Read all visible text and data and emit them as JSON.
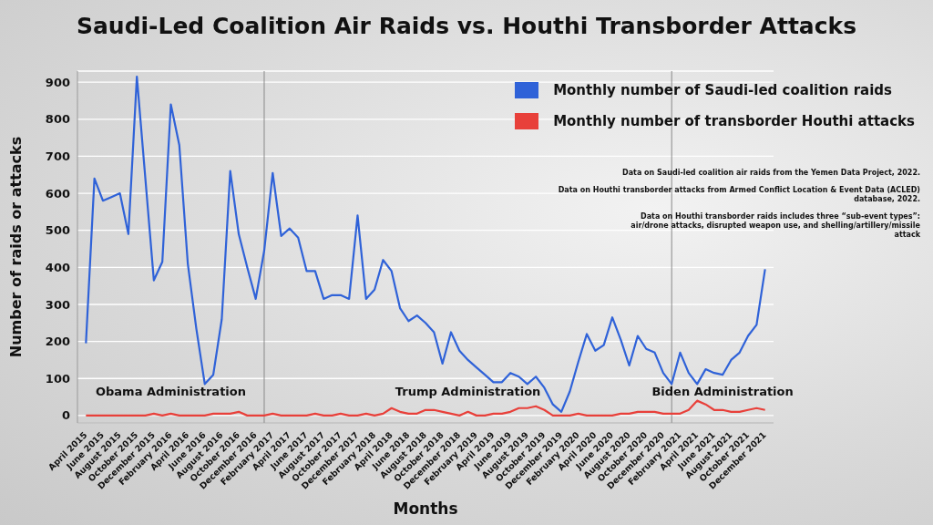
{
  "chart_data": {
    "type": "line",
    "title": "Saudi-Led Coalition Air Raids vs. Houthi Transborder Attacks",
    "xlabel": "Months",
    "ylabel": "Number of raids or attacks",
    "x": [
      "2015-04",
      "2015-05",
      "2015-06",
      "2015-07",
      "2015-08",
      "2015-09",
      "2015-10",
      "2015-11",
      "2015-12",
      "2016-01",
      "2016-02",
      "2016-03",
      "2016-04",
      "2016-05",
      "2016-06",
      "2016-07",
      "2016-08",
      "2016-09",
      "2016-10",
      "2016-11",
      "2016-12",
      "2017-01",
      "2017-02",
      "2017-03",
      "2017-04",
      "2017-05",
      "2017-06",
      "2017-07",
      "2017-08",
      "2017-09",
      "2017-10",
      "2017-11",
      "2017-12",
      "2018-01",
      "2018-02",
      "2018-03",
      "2018-04",
      "2018-05",
      "2018-06",
      "2018-07",
      "2018-08",
      "2018-09",
      "2018-10",
      "2018-11",
      "2018-12",
      "2019-01",
      "2019-02",
      "2019-03",
      "2019-04",
      "2019-05",
      "2019-06",
      "2019-07",
      "2019-08",
      "2019-09",
      "2019-10",
      "2019-11",
      "2019-12",
      "2020-01",
      "2020-02",
      "2020-03",
      "2020-04",
      "2020-05",
      "2020-06",
      "2020-07",
      "2020-08",
      "2020-09",
      "2020-10",
      "2020-11",
      "2020-12",
      "2021-01",
      "2021-02",
      "2021-03",
      "2021-04",
      "2021-05",
      "2021-06",
      "2021-07",
      "2021-08",
      "2021-09",
      "2021-10",
      "2021-11",
      "2021-12"
    ],
    "series": [
      {
        "name": "Monthly number of Saudi-led coalition raids",
        "color": "#2f62d8",
        "values": [
          195,
          640,
          580,
          590,
          600,
          490,
          915,
          640,
          365,
          415,
          840,
          730,
          410,
          235,
          85,
          110,
          260,
          660,
          490,
          400,
          315,
          445,
          655,
          485,
          505,
          480,
          390,
          390,
          315,
          325,
          325,
          315,
          540,
          315,
          340,
          420,
          390,
          290,
          255,
          270,
          250,
          225,
          140,
          225,
          175,
          150,
          130,
          110,
          90,
          90,
          115,
          105,
          85,
          105,
          75,
          30,
          10,
          65,
          145,
          220,
          175,
          190,
          265,
          205,
          135,
          215,
          180,
          170,
          115,
          85,
          170,
          115,
          85,
          125,
          115,
          110,
          150,
          170,
          215,
          245,
          395
        ]
      },
      {
        "name": "Monthly number of transborder Houthi attacks",
        "color": "#e8403a",
        "values": [
          0,
          0,
          0,
          0,
          0,
          0,
          0,
          0,
          5,
          0,
          5,
          0,
          0,
          0,
          0,
          5,
          5,
          5,
          10,
          0,
          0,
          0,
          5,
          0,
          0,
          0,
          0,
          5,
          0,
          0,
          5,
          0,
          0,
          5,
          0,
          5,
          20,
          10,
          5,
          5,
          15,
          15,
          10,
          5,
          0,
          10,
          0,
          0,
          5,
          5,
          10,
          20,
          20,
          25,
          15,
          0,
          0,
          0,
          5,
          0,
          0,
          0,
          0,
          5,
          5,
          10,
          10,
          10,
          5,
          5,
          5,
          15,
          40,
          30,
          15,
          15,
          10,
          10,
          15,
          20,
          15
        ]
      }
    ],
    "xlim": [
      "2015-03",
      "2022-01"
    ],
    "xticks": [
      {
        "value": "2015-04",
        "label": "April 2015"
      },
      {
        "value": "2015-06",
        "label": "June 2015"
      },
      {
        "value": "2015-08",
        "label": "August 2015"
      },
      {
        "value": "2015-10",
        "label": "October 2015"
      },
      {
        "value": "2015-12",
        "label": "December 2015"
      },
      {
        "value": "2016-02",
        "label": "February 2016"
      },
      {
        "value": "2016-04",
        "label": "April 2016"
      },
      {
        "value": "2016-06",
        "label": "June 2016"
      },
      {
        "value": "2016-08",
        "label": "August 2016"
      },
      {
        "value": "2016-10",
        "label": "October 2016"
      },
      {
        "value": "2016-12",
        "label": "December 2016"
      },
      {
        "value": "2017-02",
        "label": "February 2017"
      },
      {
        "value": "2017-04",
        "label": "April 2017"
      },
      {
        "value": "2017-06",
        "label": "June 2017"
      },
      {
        "value": "2017-08",
        "label": "August 2017"
      },
      {
        "value": "2017-10",
        "label": "October 2017"
      },
      {
        "value": "2017-12",
        "label": "December 2017"
      },
      {
        "value": "2018-02",
        "label": "February 2018"
      },
      {
        "value": "2018-04",
        "label": "April 2018"
      },
      {
        "value": "2018-06",
        "label": "June 2018"
      },
      {
        "value": "2018-08",
        "label": "August 2018"
      },
      {
        "value": "2018-10",
        "label": "October 2018"
      },
      {
        "value": "2018-12",
        "label": "December 2018"
      },
      {
        "value": "2019-02",
        "label": "February 2019"
      },
      {
        "value": "2019-04",
        "label": "April 2019"
      },
      {
        "value": "2019-06",
        "label": "June 2019"
      },
      {
        "value": "2019-08",
        "label": "August 2019"
      },
      {
        "value": "2019-10",
        "label": "October 2019"
      },
      {
        "value": "2019-12",
        "label": "December 2019"
      },
      {
        "value": "2020-02",
        "label": "February 2020"
      },
      {
        "value": "2020-04",
        "label": "April 2020"
      },
      {
        "value": "2020-06",
        "label": "June 2020"
      },
      {
        "value": "2020-08",
        "label": "August 2020"
      },
      {
        "value": "2020-10",
        "label": "October 2020"
      },
      {
        "value": "2020-12",
        "label": "December 2020"
      },
      {
        "value": "2021-02",
        "label": "February 2021"
      },
      {
        "value": "2021-04",
        "label": "April 2021"
      },
      {
        "value": "2021-06",
        "label": "June 2021"
      },
      {
        "value": "2021-08",
        "label": "August 2021"
      },
      {
        "value": "2021-10",
        "label": "October 2021"
      },
      {
        "value": "2021-12",
        "label": "December 2021"
      }
    ],
    "ylim": [
      -20,
      930
    ],
    "yticks": [
      0,
      100,
      200,
      300,
      400,
      500,
      600,
      700,
      800,
      900
    ],
    "grid": "y",
    "legend": "top right",
    "marker": "none",
    "line_style": "solid",
    "ref_lines": [
      {
        "axis": "x",
        "value": "2017-01",
        "color": "#888888"
      },
      {
        "axis": "x",
        "value": "2021-01",
        "color": "#888888"
      }
    ],
    "annotations": [
      "Obama Administration",
      "Trump Administration",
      "Biden Administration",
      "Data on Saudi-led coalition air raids from the Yemen Data Project, 2022.",
      "Data on Houthi transborder attacks from Armed Conflict Location & Event Data (ACLED) database, 2022.",
      "Data on Houthi transborder raids includes three “sub-event types”: air/drone attacks, disrupted weapon use, and shelling/artillery/missile attack"
    ]
  }
}
